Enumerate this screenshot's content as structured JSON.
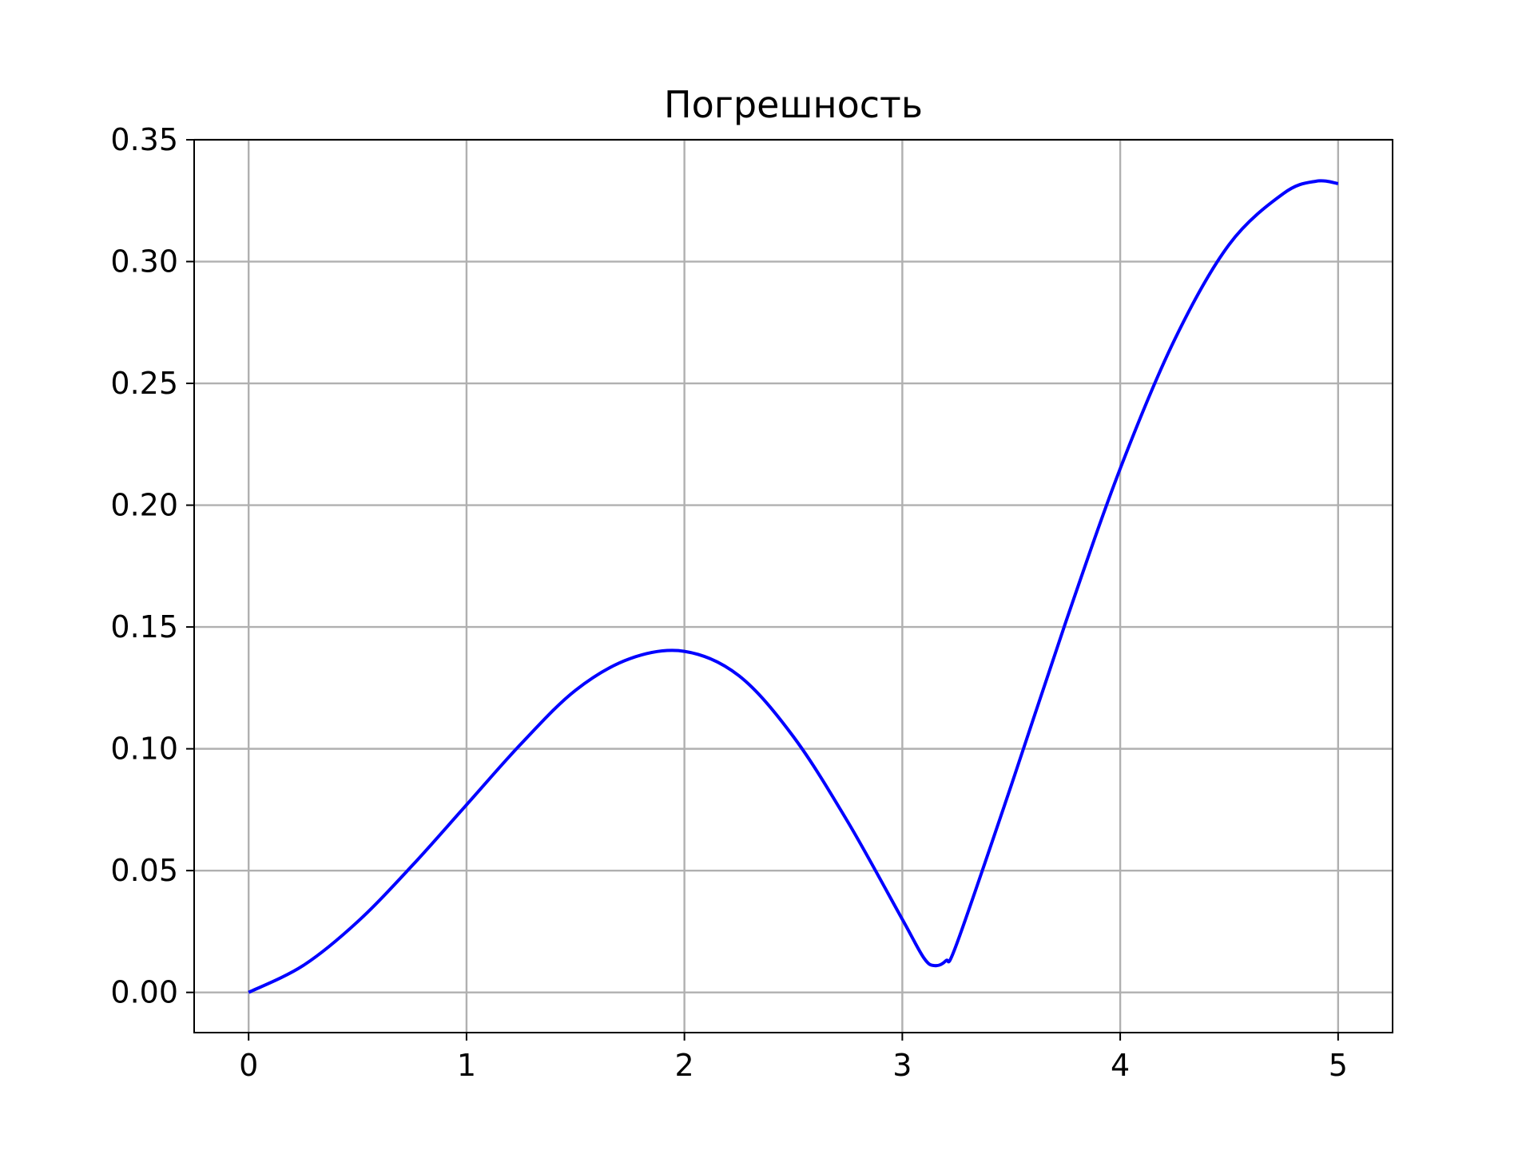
{
  "chart_data": {
    "type": "line",
    "title": "Погрешность",
    "xlabel": "",
    "ylabel": "",
    "xlim": [
      -0.25,
      5.25
    ],
    "ylim": [
      -0.0165,
      0.35
    ],
    "grid": true,
    "x_ticks": [
      0,
      1,
      2,
      3,
      4,
      5
    ],
    "x_tick_labels": [
      "0",
      "1",
      "2",
      "3",
      "4",
      "5"
    ],
    "y_ticks": [
      0.0,
      0.05,
      0.1,
      0.15,
      0.2,
      0.25,
      0.3,
      0.35
    ],
    "y_tick_labels": [
      "0.00",
      "0.05",
      "0.10",
      "0.15",
      "0.20",
      "0.25",
      "0.30",
      "0.35"
    ],
    "series": [
      {
        "color": "#0000ff",
        "x": [
          0.0,
          0.25,
          0.5,
          0.75,
          1.0,
          1.25,
          1.5,
          1.75,
          2.0,
          2.25,
          2.5,
          2.75,
          3.0,
          3.1,
          3.15,
          3.2,
          3.25,
          3.5,
          3.75,
          4.0,
          4.25,
          4.5,
          4.75,
          4.9,
          5.0
        ],
        "y": [
          0.0,
          0.011,
          0.029,
          0.052,
          0.077,
          0.102,
          0.124,
          0.137,
          0.14,
          0.13,
          0.105,
          0.07,
          0.03,
          0.014,
          0.011,
          0.013,
          0.02,
          0.085,
          0.152,
          0.215,
          0.268,
          0.307,
          0.328,
          0.333,
          0.332
        ]
      }
    ]
  }
}
